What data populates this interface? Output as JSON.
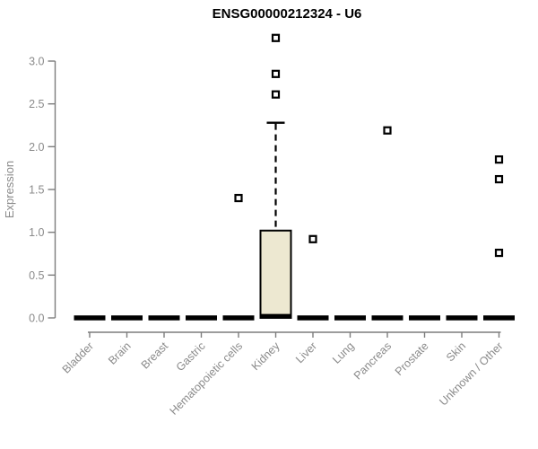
{
  "chart_data": {
    "type": "boxplot",
    "title": "ENSG00000212324 - U6",
    "ylabel": "Expression",
    "xlabel": "",
    "ylim": [
      0,
      3.3
    ],
    "yticks": [
      0.0,
      0.5,
      1.0,
      1.5,
      2.0,
      2.5,
      3.0
    ],
    "grid": false,
    "categories": [
      "Bladder",
      "Brain",
      "Breast",
      "Gastric",
      "Hematopoietic cells",
      "Kidney",
      "Liver",
      "Lung",
      "Pancreas",
      "Prostate",
      "Skin",
      "Unknown / Other"
    ],
    "boxes": [
      {
        "category": "Bladder",
        "min": 0,
        "q1": 0,
        "median": 0,
        "q3": 0,
        "max": 0,
        "outliers": []
      },
      {
        "category": "Brain",
        "min": 0,
        "q1": 0,
        "median": 0,
        "q3": 0,
        "max": 0,
        "outliers": []
      },
      {
        "category": "Breast",
        "min": 0,
        "q1": 0,
        "median": 0,
        "q3": 0,
        "max": 0,
        "outliers": []
      },
      {
        "category": "Gastric",
        "min": 0,
        "q1": 0,
        "median": 0,
        "q3": 0,
        "max": 0,
        "outliers": []
      },
      {
        "category": "Hematopoietic cells",
        "min": 0,
        "q1": 0,
        "median": 0,
        "q3": 0,
        "max": 0,
        "outliers": [
          1.4
        ]
      },
      {
        "category": "Kidney",
        "min": 0,
        "q1": 0,
        "median": 0.02,
        "q3": 1.02,
        "max": 2.28,
        "outliers": [
          2.61,
          2.85,
          3.27
        ]
      },
      {
        "category": "Liver",
        "min": 0,
        "q1": 0,
        "median": 0,
        "q3": 0,
        "max": 0,
        "outliers": [
          0.92
        ]
      },
      {
        "category": "Lung",
        "min": 0,
        "q1": 0,
        "median": 0,
        "q3": 0,
        "max": 0,
        "outliers": []
      },
      {
        "category": "Pancreas",
        "min": 0,
        "q1": 0,
        "median": 0,
        "q3": 0,
        "max": 0,
        "outliers": [
          2.19
        ]
      },
      {
        "category": "Prostate",
        "min": 0,
        "q1": 0,
        "median": 0,
        "q3": 0,
        "max": 0,
        "outliers": []
      },
      {
        "category": "Skin",
        "min": 0,
        "q1": 0,
        "median": 0,
        "q3": 0,
        "max": 0,
        "outliers": []
      },
      {
        "category": "Unknown / Other",
        "min": 0,
        "q1": 0,
        "median": 0,
        "q3": 0,
        "max": 0,
        "outliers": [
          0.76,
          1.62,
          1.85
        ]
      }
    ],
    "colors": {
      "box_fill": "#ede8d1",
      "box_stroke": "#000000",
      "axis": "#7d7d7d",
      "label_gray": "#8a8a8a",
      "outlier_stroke": "#000000",
      "outlier_fill": "#ffffff",
      "zero_bar": "#000000"
    }
  }
}
